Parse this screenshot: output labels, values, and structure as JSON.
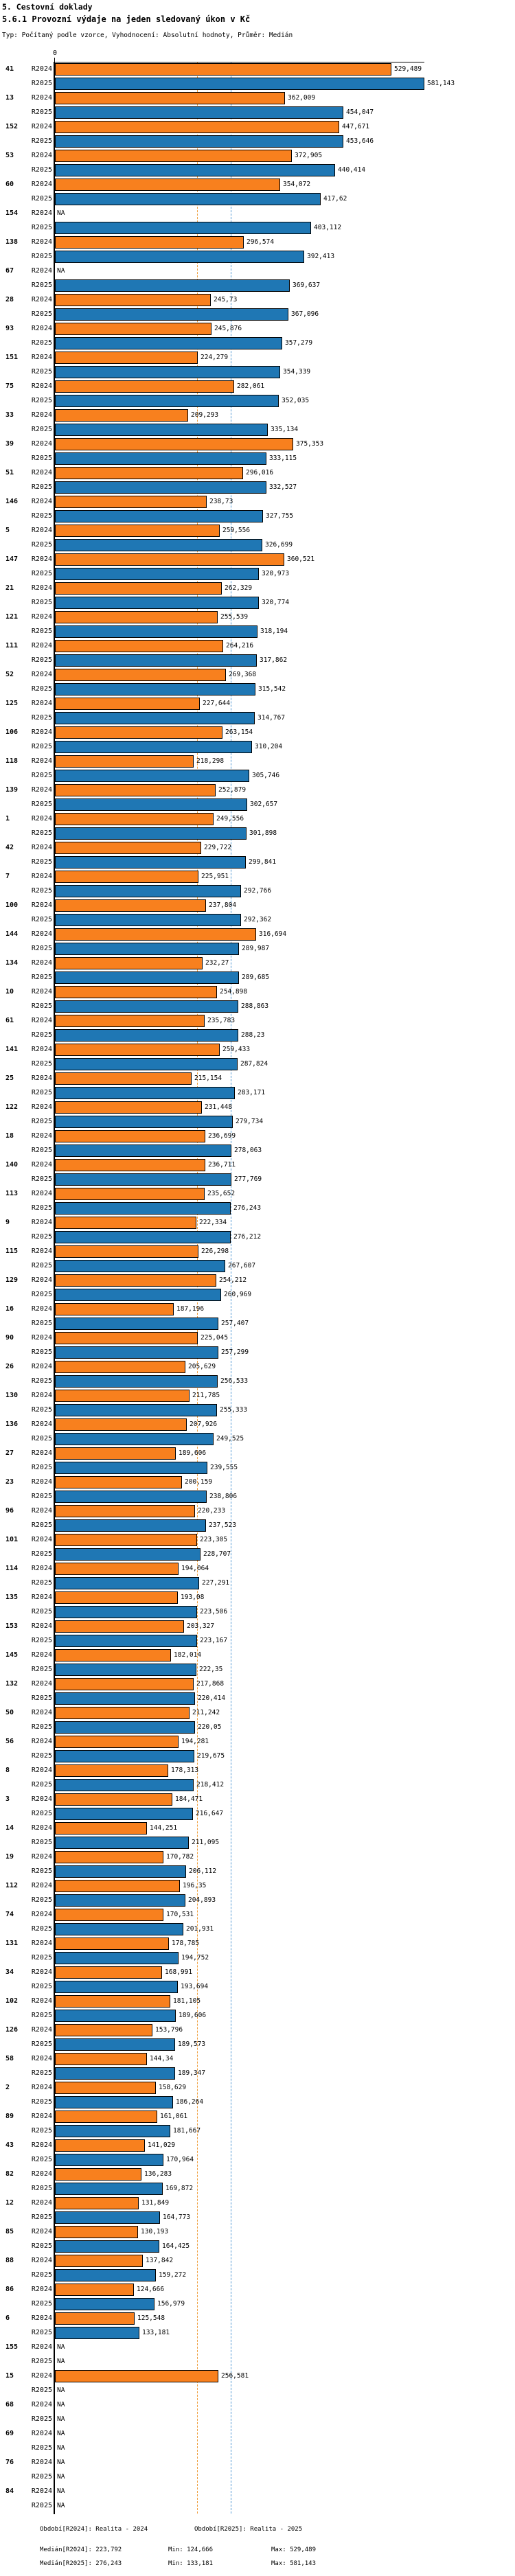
{
  "header": {
    "title": "5. Cestovní doklady",
    "subtitle": "5.6.1 Provozní výdaje na jeden sledovaný úkon v Kč",
    "meta": "Typ: Počítaný podle vzorce, Vyhodnocení: Absolutní hodnoty, Průměr: Medián"
  },
  "chart_data": {
    "type": "bar",
    "orientation": "horizontal",
    "unit": "Kč",
    "title": "5.6.1 Provozní výdaje na jeden sledovaný úkon v Kč",
    "axis": {
      "zero_label": "0",
      "max": 581.143,
      "grid": false
    },
    "series_labels": {
      "r2024": "R2024",
      "r2025": "R2025"
    },
    "na_label": "NA",
    "colors": {
      "bar_2024": "#f8801e",
      "bar_2025": "#1f77b4",
      "bar_border": "#000000",
      "median_line_2024": "#ef9f3e",
      "median_line_2025": "#4e96d2"
    },
    "median_lines": {
      "r2024": 223.792,
      "r2025": 276.243
    },
    "groups": [
      {
        "id": "41",
        "r2024": "529,489",
        "r2025": "581,143"
      },
      {
        "id": "13",
        "r2024": "362,009",
        "r2025": "454,047"
      },
      {
        "id": "152",
        "r2024": "447,671",
        "r2025": "453,646"
      },
      {
        "id": "53",
        "r2024": "372,905",
        "r2025": "440,414"
      },
      {
        "id": "60",
        "r2024": "354,072",
        "r2025": "417,62"
      },
      {
        "id": "154",
        "r2024": "NA",
        "r2025": "403,112"
      },
      {
        "id": "138",
        "r2024": "296,574",
        "r2025": "392,413"
      },
      {
        "id": "67",
        "r2024": "NA",
        "r2025": "369,637"
      },
      {
        "id": "28",
        "r2024": "245,73",
        "r2025": "367,096"
      },
      {
        "id": "93",
        "r2024": "245,876",
        "r2025": "357,279"
      },
      {
        "id": "151",
        "r2024": "224,279",
        "r2025": "354,339"
      },
      {
        "id": "75",
        "r2024": "282,061",
        "r2025": "352,035"
      },
      {
        "id": "33",
        "r2024": "209,293",
        "r2025": "335,134"
      },
      {
        "id": "39",
        "r2024": "375,353",
        "r2025": "333,115"
      },
      {
        "id": "51",
        "r2024": "296,016",
        "r2025": "332,527"
      },
      {
        "id": "146",
        "r2024": "238,73",
        "r2025": "327,755"
      },
      {
        "id": "5",
        "r2024": "259,556",
        "r2025": "326,699"
      },
      {
        "id": "147",
        "r2024": "360,521",
        "r2025": "320,973"
      },
      {
        "id": "21",
        "r2024": "262,329",
        "r2025": "320,774"
      },
      {
        "id": "121",
        "r2024": "255,539",
        "r2025": "318,194"
      },
      {
        "id": "111",
        "r2024": "264,216",
        "r2025": "317,862"
      },
      {
        "id": "52",
        "r2024": "269,368",
        "r2025": "315,542"
      },
      {
        "id": "125",
        "r2024": "227,644",
        "r2025": "314,767"
      },
      {
        "id": "106",
        "r2024": "263,154",
        "r2025": "310,204"
      },
      {
        "id": "118",
        "r2024": "218,298",
        "r2025": "305,746"
      },
      {
        "id": "139",
        "r2024": "252,879",
        "r2025": "302,657"
      },
      {
        "id": "1",
        "r2024": "249,556",
        "r2025": "301,898"
      },
      {
        "id": "42",
        "r2024": "229,722",
        "r2025": "299,841"
      },
      {
        "id": "7",
        "r2024": "225,951",
        "r2025": "292,766"
      },
      {
        "id": "100",
        "r2024": "237,804",
        "r2025": "292,362"
      },
      {
        "id": "144",
        "r2024": "316,694",
        "r2025": "289,987"
      },
      {
        "id": "134",
        "r2024": "232,27",
        "r2025": "289,685"
      },
      {
        "id": "10",
        "r2024": "254,898",
        "r2025": "288,863"
      },
      {
        "id": "61",
        "r2024": "235,783",
        "r2025": "288,23"
      },
      {
        "id": "141",
        "r2024": "259,433",
        "r2025": "287,824"
      },
      {
        "id": "25",
        "r2024": "215,154",
        "r2025": "283,171"
      },
      {
        "id": "122",
        "r2024": "231,448",
        "r2025": "279,734"
      },
      {
        "id": "18",
        "r2024": "236,699",
        "r2025": "278,063"
      },
      {
        "id": "140",
        "r2024": "236,711",
        "r2025": "277,769"
      },
      {
        "id": "113",
        "r2024": "235,652",
        "r2025": "276,243"
      },
      {
        "id": "9",
        "r2024": "222,334",
        "r2025": "276,212"
      },
      {
        "id": "115",
        "r2024": "226,298",
        "r2025": "267,607"
      },
      {
        "id": "129",
        "r2024": "254,212",
        "r2025": "260,969"
      },
      {
        "id": "16",
        "r2024": "187,196",
        "r2025": "257,407"
      },
      {
        "id": "90",
        "r2024": "225,045",
        "r2025": "257,299"
      },
      {
        "id": "26",
        "r2024": "205,629",
        "r2025": "256,533"
      },
      {
        "id": "130",
        "r2024": "211,785",
        "r2025": "255,333"
      },
      {
        "id": "136",
        "r2024": "207,926",
        "r2025": "249,525"
      },
      {
        "id": "27",
        "r2024": "189,606",
        "r2025": "239,555"
      },
      {
        "id": "23",
        "r2024": "200,159",
        "r2025": "238,806"
      },
      {
        "id": "96",
        "r2024": "220,233",
        "r2025": "237,523"
      },
      {
        "id": "101",
        "r2024": "223,305",
        "r2025": "228,707"
      },
      {
        "id": "114",
        "r2024": "194,064",
        "r2025": "227,291"
      },
      {
        "id": "135",
        "r2024": "193,08",
        "r2025": "223,506"
      },
      {
        "id": "153",
        "r2024": "203,327",
        "r2025": "223,167"
      },
      {
        "id": "145",
        "r2024": "182,014",
        "r2025": "222,35"
      },
      {
        "id": "132",
        "r2024": "217,868",
        "r2025": "220,414"
      },
      {
        "id": "50",
        "r2024": "211,242",
        "r2025": "220,05"
      },
      {
        "id": "56",
        "r2024": "194,281",
        "r2025": "219,675"
      },
      {
        "id": "8",
        "r2024": "178,313",
        "r2025": "218,412"
      },
      {
        "id": "3",
        "r2024": "184,471",
        "r2025": "216,647"
      },
      {
        "id": "14",
        "r2024": "144,251",
        "r2025": "211,095"
      },
      {
        "id": "19",
        "r2024": "170,782",
        "r2025": "206,112"
      },
      {
        "id": "112",
        "r2024": "196,35",
        "r2025": "204,893"
      },
      {
        "id": "74",
        "r2024": "170,531",
        "r2025": "201,931"
      },
      {
        "id": "131",
        "r2024": "178,785",
        "r2025": "194,752"
      },
      {
        "id": "34",
        "r2024": "168,991",
        "r2025": "193,694"
      },
      {
        "id": "102",
        "r2024": "181,105",
        "r2025": "189,606"
      },
      {
        "id": "126",
        "r2024": "153,796",
        "r2025": "189,573"
      },
      {
        "id": "58",
        "r2024": "144,34",
        "r2025": "189,347"
      },
      {
        "id": "2",
        "r2024": "158,629",
        "r2025": "186,264"
      },
      {
        "id": "89",
        "r2024": "161,061",
        "r2025": "181,667"
      },
      {
        "id": "43",
        "r2024": "141,029",
        "r2025": "170,964"
      },
      {
        "id": "82",
        "r2024": "136,283",
        "r2025": "169,872"
      },
      {
        "id": "12",
        "r2024": "131,849",
        "r2025": "164,773"
      },
      {
        "id": "85",
        "r2024": "130,193",
        "r2025": "164,425"
      },
      {
        "id": "88",
        "r2024": "137,842",
        "r2025": "159,272"
      },
      {
        "id": "86",
        "r2024": "124,666",
        "r2025": "156,979"
      },
      {
        "id": "6",
        "r2024": "125,548",
        "r2025": "133,181"
      },
      {
        "id": "155",
        "r2024": "NA",
        "r2025": "NA"
      },
      {
        "id": "15",
        "r2024": "256,581",
        "r2025": "NA"
      },
      {
        "id": "68",
        "r2024": "NA",
        "r2025": "NA"
      },
      {
        "id": "69",
        "r2024": "NA",
        "r2025": "NA"
      },
      {
        "id": "76",
        "r2024": "NA",
        "r2025": "NA"
      },
      {
        "id": "84",
        "r2024": "NA",
        "r2025": "NA"
      }
    ]
  },
  "footer": {
    "period_2024": "Období[R2024]: Realita - 2024",
    "period_2025": "Období[R2025]: Realita - 2025",
    "stats_2024": {
      "median": "Medián[R2024]: 223,792",
      "min": "Min: 124,666",
      "max": "Max: 529,489"
    },
    "stats_2025": {
      "median": "Medián[R2025]: 276,243",
      "min": "Min: 133,181",
      "max": "Max: 581,143"
    }
  }
}
